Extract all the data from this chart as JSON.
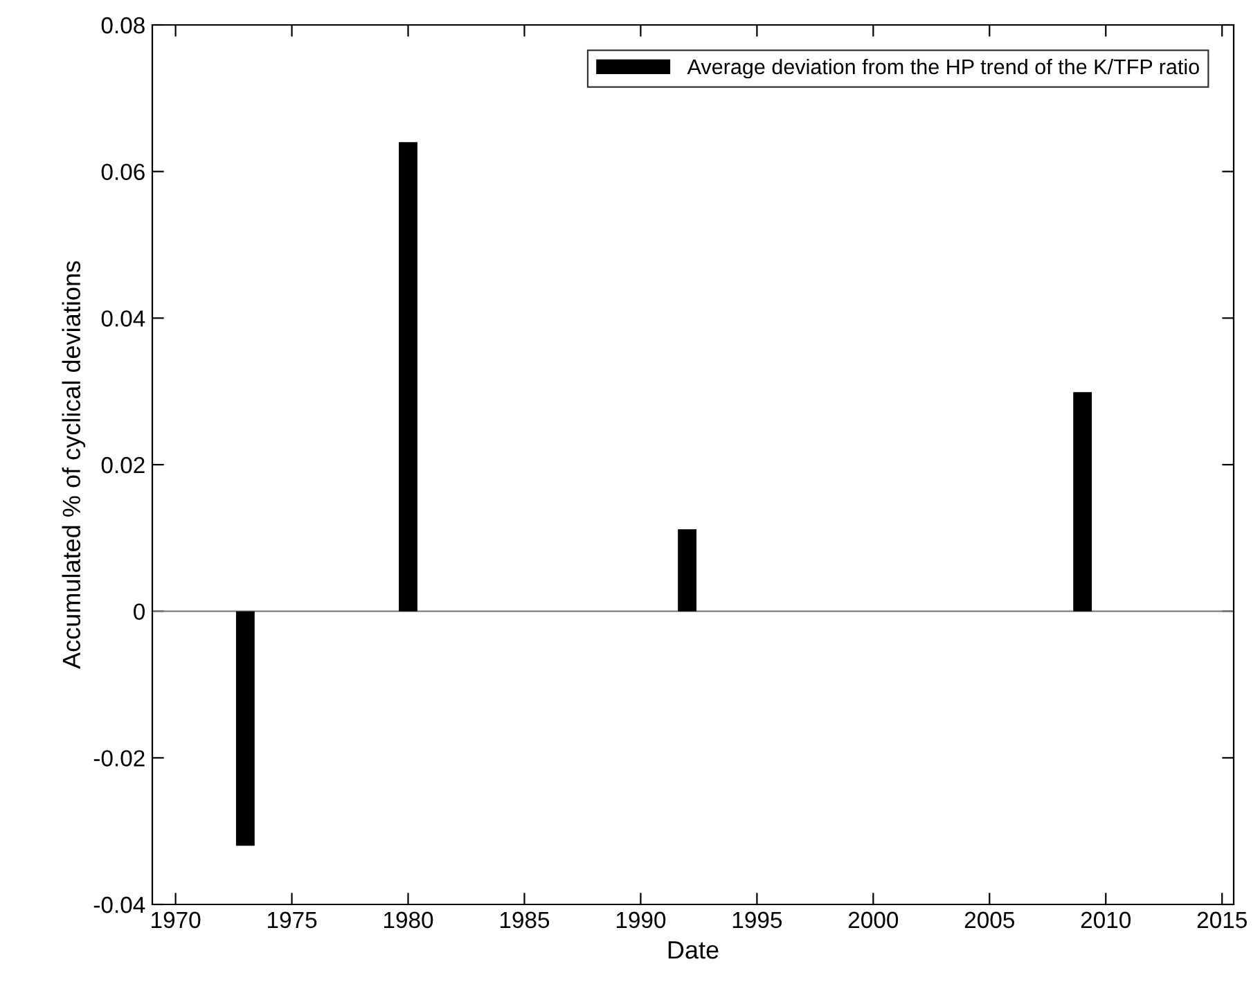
{
  "chart_data": {
    "type": "bar",
    "xlabel": "Date",
    "ylabel": "Accumulated % of cyclical deviations",
    "x": [
      1973,
      1980,
      1992,
      2009
    ],
    "series": [
      {
        "name": "Average deviation from the HP trend of the K/TFP ratio",
        "color": "#000000",
        "values": [
          -0.032,
          0.064,
          0.0112,
          0.0299
        ]
      }
    ],
    "xlim": [
      1969,
      2015.5
    ],
    "xticks": [
      1970,
      1975,
      1980,
      1985,
      1990,
      1995,
      2000,
      2005,
      2010,
      2015
    ],
    "ylim": [
      -0.04,
      0.08
    ],
    "yticks": [
      {
        "value": -0.04,
        "label": "-0.04"
      },
      {
        "value": -0.02,
        "label": "-0.02"
      },
      0,
      0.02,
      0.04,
      0.06,
      0.08
    ],
    "ref_lines": [
      {
        "axis": "y",
        "value": 0,
        "color": "#808080"
      }
    ],
    "grid": false,
    "legend": "top right"
  }
}
